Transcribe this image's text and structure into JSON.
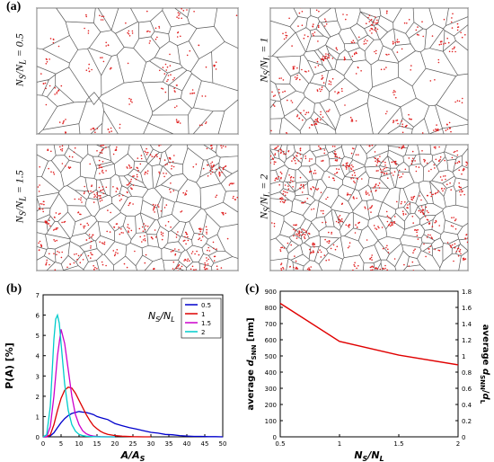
{
  "panel_a": {
    "label": "(a)",
    "row_labels": [
      "N_S/N_L = 0.5",
      "N_S/N_L = 1",
      "N_S/N_L = 1.5",
      "N_S/N_L = 2"
    ],
    "label_parts": [
      {
        "pre": "N",
        "sub1": "S",
        "mid": "/N",
        "sub2": "L",
        "eq": " = 0.5"
      },
      {
        "pre": "N",
        "sub1": "S",
        "mid": "/N",
        "sub2": "L",
        "eq": " = 1"
      },
      {
        "pre": "N",
        "sub1": "S",
        "mid": "/N",
        "sub2": "L",
        "eq": " = 1.5"
      },
      {
        "pre": "N",
        "sub1": "S",
        "mid": "/N",
        "sub2": "L",
        "eq": " = 2"
      }
    ],
    "colors": {
      "cell_edge": "#5a5a5a",
      "point": "#e02020"
    }
  },
  "chart_data": [
    {
      "panel": "(b)",
      "type": "line",
      "xlabel": "A/A_S",
      "ylabel": "P(A) [%]",
      "xlim": [
        0,
        50
      ],
      "ylim": [
        0,
        7
      ],
      "xticks": [
        0,
        5,
        10,
        15,
        20,
        25,
        30,
        35,
        40,
        45,
        50
      ],
      "yticks": [
        0,
        1,
        2,
        3,
        4,
        5,
        6,
        7
      ],
      "legend_title": "N_S/N_L",
      "legend_position": "top-right",
      "series": [
        {
          "name": "0.5",
          "color": "#0000cc",
          "x": [
            0,
            1,
            2,
            3,
            4,
            5,
            6,
            7,
            8,
            9,
            10,
            11,
            12,
            13,
            14,
            15,
            16,
            17,
            18,
            19,
            20,
            22,
            24,
            26,
            28,
            30,
            32,
            34,
            36,
            38,
            40,
            42,
            44,
            46,
            48,
            50
          ],
          "y": [
            0,
            0,
            0.05,
            0.2,
            0.45,
            0.7,
            0.9,
            1.05,
            1.15,
            1.2,
            1.25,
            1.22,
            1.2,
            1.15,
            1.1,
            1.0,
            0.95,
            0.9,
            0.85,
            0.75,
            0.65,
            0.55,
            0.45,
            0.38,
            0.3,
            0.22,
            0.18,
            0.12,
            0.1,
            0.06,
            0.04,
            0.02,
            0.02,
            0.01,
            0.01,
            0
          ]
        },
        {
          "name": "1",
          "color": "#dd0000",
          "x": [
            0,
            1,
            2,
            3,
            4,
            5,
            6,
            7,
            8,
            9,
            10,
            11,
            12,
            13,
            14,
            15,
            16,
            17,
            18,
            20,
            22,
            25,
            28,
            30
          ],
          "y": [
            0,
            0,
            0.1,
            0.6,
            1.3,
            1.9,
            2.3,
            2.45,
            2.4,
            2.15,
            1.8,
            1.45,
            1.1,
            0.8,
            0.55,
            0.4,
            0.27,
            0.18,
            0.12,
            0.06,
            0.03,
            0.01,
            0,
            0
          ]
        },
        {
          "name": "1.5",
          "color": "#cc00cc",
          "x": [
            0,
            1,
            2,
            3,
            4,
            5,
            6,
            7,
            8,
            9,
            10,
            11,
            12,
            13,
            14,
            15,
            16,
            18,
            20
          ],
          "y": [
            0,
            0,
            0.5,
            2.0,
            4.0,
            5.3,
            4.6,
            3.3,
            2.0,
            1.1,
            0.6,
            0.3,
            0.15,
            0.08,
            0.04,
            0.02,
            0.01,
            0,
            0
          ]
        },
        {
          "name": "2",
          "color": "#00cccc",
          "x": [
            0,
            1,
            2,
            3,
            3.5,
            4,
            4.5,
            5,
            6,
            7,
            8,
            9,
            10,
            11,
            12,
            14,
            16,
            20
          ],
          "y": [
            0,
            0.1,
            1.5,
            4.8,
            5.8,
            6.0,
            5.6,
            4.6,
            2.6,
            1.3,
            0.6,
            0.28,
            0.12,
            0.06,
            0.03,
            0.01,
            0,
            0
          ]
        }
      ]
    },
    {
      "panel": "(c)",
      "type": "line",
      "xlabel": "N_S/N_L",
      "ylabel_left": "average d_SNN [nm]",
      "ylabel_right": "average d_SNN/d_L",
      "xlim": [
        0.5,
        2
      ],
      "ylim_left": [
        0,
        900
      ],
      "ylim_right": [
        0,
        1.8
      ],
      "xticks": [
        0.5,
        1,
        1.5,
        2
      ],
      "yticks_left": [
        0,
        100,
        200,
        300,
        400,
        500,
        600,
        700,
        800,
        900
      ],
      "yticks_right": [
        "0",
        "0.2",
        "0.4",
        "0.6",
        "0.8",
        "1",
        "1.2",
        "1.4",
        "1.6",
        "1.8"
      ],
      "series": [
        {
          "color": "#e00000",
          "x": [
            0.5,
            1,
            1.5,
            2
          ],
          "y": [
            825,
            590,
            505,
            445
          ]
        }
      ]
    }
  ]
}
